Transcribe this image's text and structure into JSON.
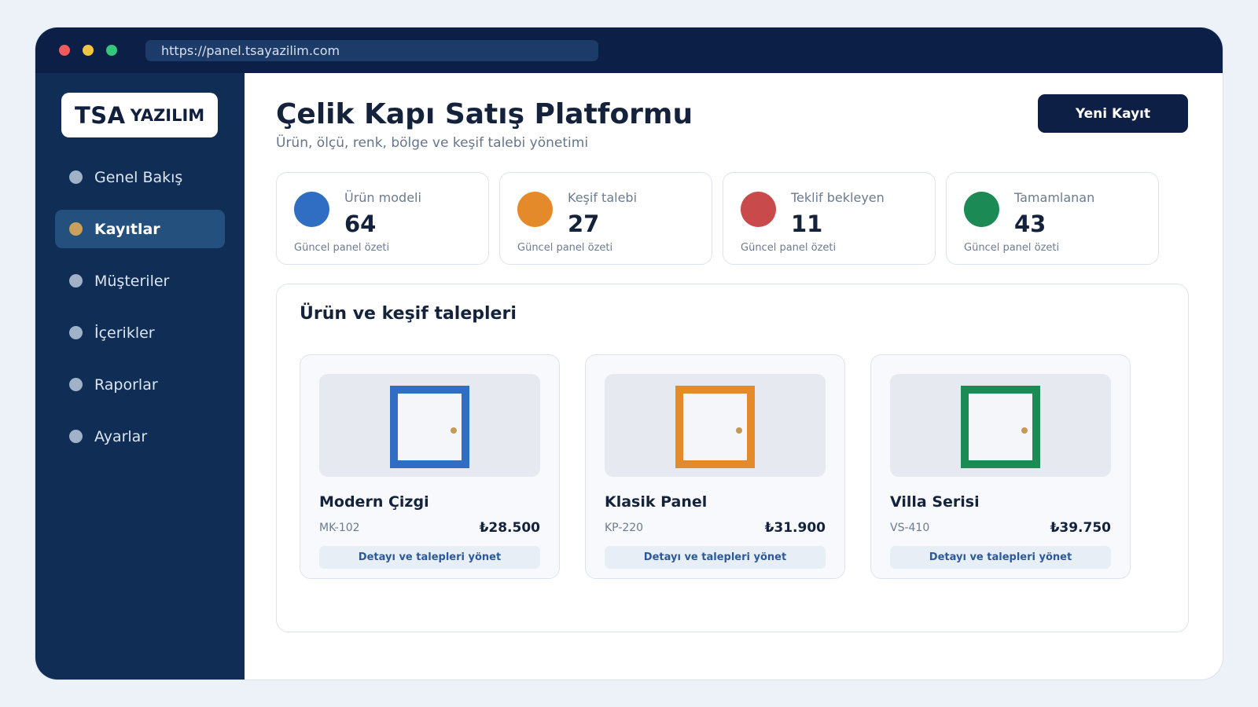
{
  "browser": {
    "url": "https://panel.tsayazilim.com"
  },
  "sidebar": {
    "logo": {
      "primary": "TSA",
      "secondary": "YAZILIM"
    },
    "items": [
      {
        "label": "Genel Bakış",
        "active": false
      },
      {
        "label": "Kayıtlar",
        "active": true
      },
      {
        "label": "Müşteriler",
        "active": false
      },
      {
        "label": "İçerikler",
        "active": false
      },
      {
        "label": "Raporlar",
        "active": false
      },
      {
        "label": "Ayarlar",
        "active": false
      }
    ]
  },
  "header": {
    "title": "Çelik Kapı Satış Platformu",
    "subtitle": "Ürün, ölçü, renk, bölge ve keşif talebi yönetimi",
    "primary_button": "Yeni Kayıt"
  },
  "stats": [
    {
      "label": "Ürün modeli",
      "value": "64",
      "caption": "Güncel panel özeti",
      "color": "#2f6ec3"
    },
    {
      "label": "Keşif talebi",
      "value": "27",
      "caption": "Güncel panel özeti",
      "color": "#e58a2a"
    },
    {
      "label": "Teklif bekleyen",
      "value": "11",
      "caption": "Güncel panel özeti",
      "color": "#c94a4a"
    },
    {
      "label": "Tamamlanan",
      "value": "43",
      "caption": "Güncel panel özeti",
      "color": "#1b8a55"
    }
  ],
  "panel": {
    "title": "Ürün ve keşif talepleri",
    "products": [
      {
        "name": "Modern Çizgi",
        "code": "MK-102",
        "price": "₺28.500",
        "link": "Detayı ve talepleri yönet",
        "door_color": "#2f6ec3"
      },
      {
        "name": "Klasik Panel",
        "code": "KP-220",
        "price": "₺31.900",
        "link": "Detayı ve talepleri yönet",
        "door_color": "#e58a2a"
      },
      {
        "name": "Villa Serisi",
        "code": "VS-410",
        "price": "₺39.750",
        "link": "Detayı ve talepleri yönet",
        "door_color": "#1b8a55"
      }
    ]
  },
  "colors": {
    "titlebar": "#0c1f47",
    "sidebar": "#0f2d55",
    "active_nav": "#23507d",
    "nav_dot": "#9fb2c8",
    "active_nav_dot": "#c9a15c",
    "window_red": "#f05b5b",
    "window_yellow": "#f5c542",
    "window_green": "#34c77b",
    "door_knob": "#c69a55"
  },
  "icons": {
    "nav_item": "circle-dot-icon",
    "stat": "circle-icon",
    "product": "door-icon"
  }
}
